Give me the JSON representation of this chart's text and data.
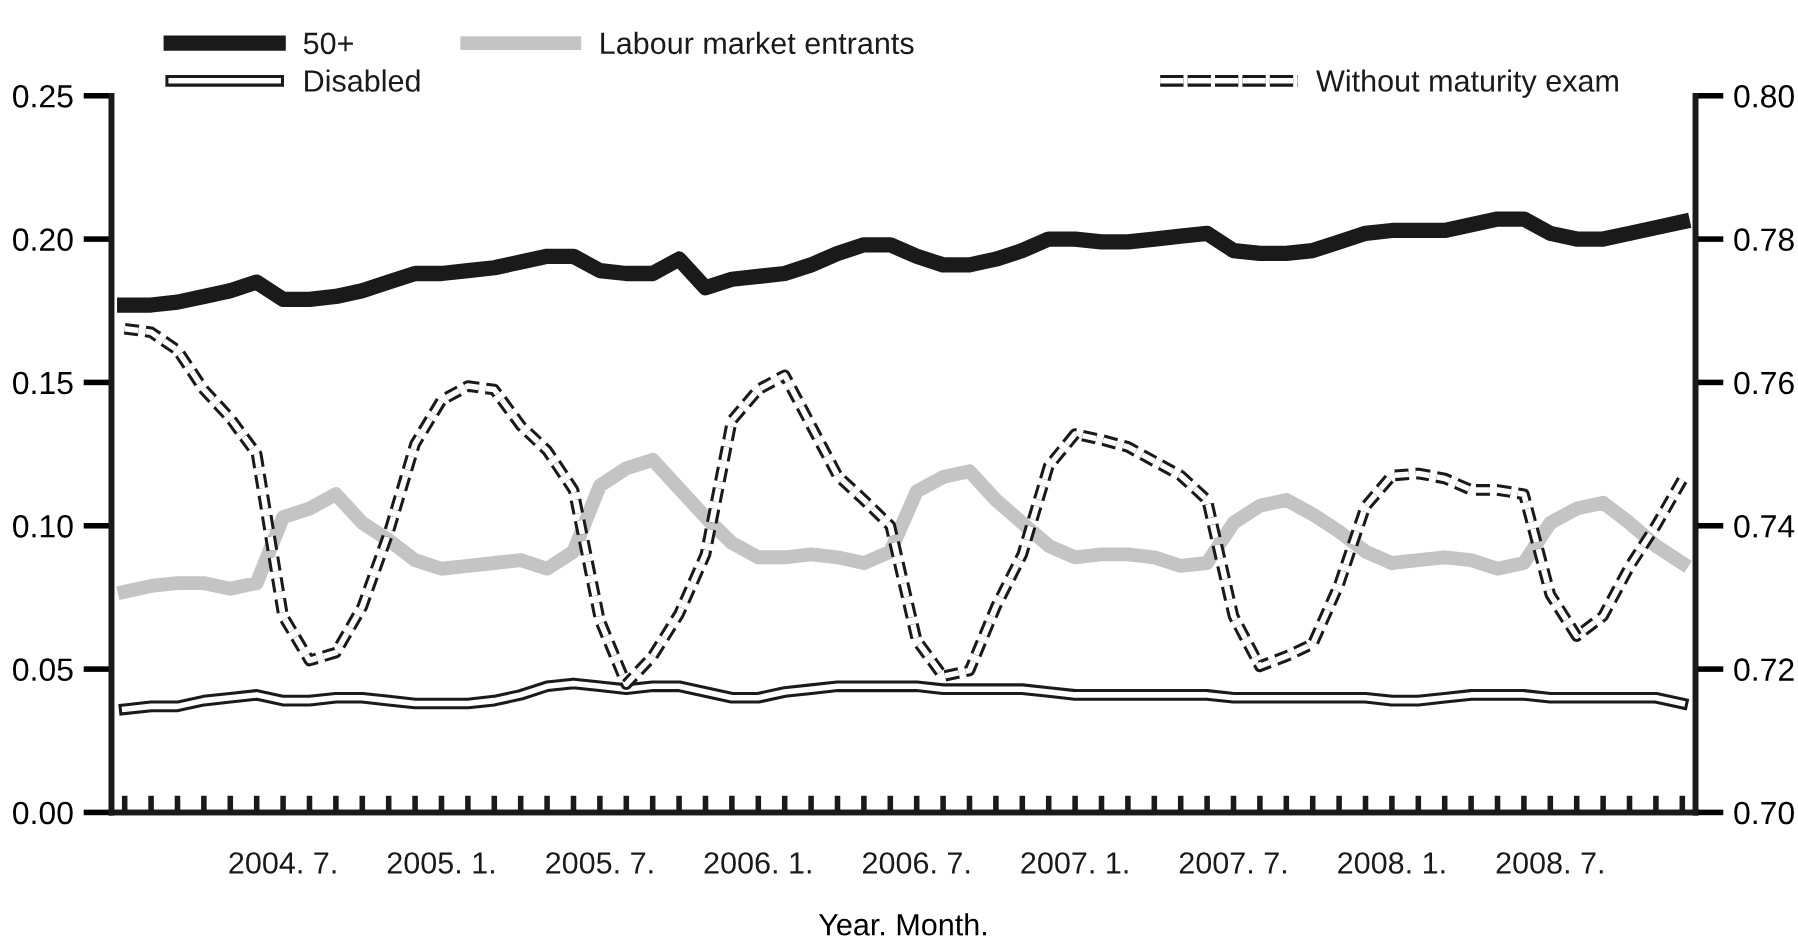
{
  "chart_data": {
    "type": "line",
    "xlabel": "Year. Month.",
    "categories": [
      null,
      null,
      null,
      null,
      null,
      null,
      "2004. 7.",
      null,
      null,
      null,
      null,
      null,
      "2005. 1.",
      null,
      null,
      null,
      null,
      null,
      "2005. 7.",
      null,
      null,
      null,
      null,
      null,
      "2006. 1.",
      null,
      null,
      null,
      null,
      null,
      "2006. 7.",
      null,
      null,
      null,
      null,
      null,
      "2007. 1.",
      null,
      null,
      null,
      null,
      null,
      "2007. 7.",
      null,
      null,
      null,
      null,
      null,
      "2008. 1.",
      null,
      null,
      null,
      null,
      null,
      "2008. 7.",
      null,
      null,
      null,
      null,
      null
    ],
    "series": [
      {
        "name": "50+",
        "color": "#1a1a1a",
        "values": [
          0.177,
          0.177,
          0.178,
          0.18,
          0.182,
          0.185,
          0.179,
          0.179,
          0.18,
          0.182,
          0.185,
          0.188,
          0.188,
          0.189,
          0.19,
          0.192,
          0.194,
          0.194,
          0.189,
          0.188,
          0.188,
          0.193,
          0.183,
          0.186,
          0.187,
          0.188,
          0.191,
          0.195,
          0.198,
          0.198,
          0.194,
          0.191,
          0.191,
          0.193,
          0.196,
          0.2,
          0.2,
          0.199,
          0.199,
          0.2,
          0.201,
          0.202,
          0.196,
          0.195,
          0.195,
          0.196,
          0.199,
          0.202,
          0.203,
          0.203,
          0.203,
          0.205,
          0.207,
          0.207,
          0.202,
          0.2,
          0.2,
          0.202,
          0.204,
          0.206
        ]
      },
      {
        "name": "Disabled",
        "color": "#1a1a1a",
        "values": [
          0.036,
          0.037,
          0.037,
          0.039,
          0.04,
          0.041,
          0.039,
          0.039,
          0.04,
          0.04,
          0.039,
          0.038,
          0.038,
          0.038,
          0.039,
          0.041,
          0.044,
          0.045,
          0.044,
          0.043,
          0.044,
          0.044,
          0.042,
          0.04,
          0.04,
          0.042,
          0.043,
          0.044,
          0.044,
          0.044,
          0.044,
          0.043,
          0.043,
          0.043,
          0.043,
          0.042,
          0.041,
          0.041,
          0.041,
          0.041,
          0.041,
          0.041,
          0.04,
          0.04,
          0.04,
          0.04,
          0.04,
          0.04,
          0.039,
          0.039,
          0.04,
          0.041,
          0.041,
          0.041,
          0.04,
          0.04,
          0.04,
          0.04,
          0.04,
          0.038
        ]
      },
      {
        "name": "Labour market entrants",
        "color": "#c4c4c4",
        "values": [
          0.077,
          0.079,
          0.08,
          0.08,
          0.078,
          0.08,
          0.103,
          0.106,
          0.111,
          0.101,
          0.095,
          0.088,
          0.085,
          0.086,
          0.087,
          0.088,
          0.085,
          0.091,
          0.114,
          0.12,
          0.123,
          0.113,
          0.103,
          0.094,
          0.089,
          0.089,
          0.09,
          0.089,
          0.087,
          0.091,
          0.112,
          0.117,
          0.119,
          0.109,
          0.101,
          0.093,
          0.089,
          0.09,
          0.09,
          0.089,
          0.086,
          0.087,
          0.101,
          0.107,
          0.109,
          0.104,
          0.098,
          0.091,
          0.087,
          0.088,
          0.089,
          0.088,
          0.085,
          0.087,
          0.101,
          0.106,
          0.108,
          0.101,
          0.093,
          0.087
        ]
      },
      {
        "name": "Without maturity exam",
        "color": "#1a1a1a",
        "axis": "y2",
        "line_style": "dashed",
        "values": [
          0.7675,
          0.767,
          0.7645,
          0.759,
          0.755,
          0.75,
          0.7274,
          0.7212,
          0.7223,
          0.7287,
          0.739,
          0.7514,
          0.7575,
          0.7595,
          0.759,
          0.754,
          0.7505,
          0.745,
          0.7268,
          0.7179,
          0.7218,
          0.7277,
          0.736,
          0.7547,
          0.759,
          0.761,
          0.754,
          0.747,
          0.7436,
          0.74,
          0.724,
          0.719,
          0.7198,
          0.7287,
          0.736,
          0.7483,
          0.7528,
          0.752,
          0.751,
          0.749,
          0.747,
          0.7436,
          0.7274,
          0.7204,
          0.7218,
          0.7235,
          0.7318,
          0.7427,
          0.747,
          0.7473,
          0.7466,
          0.745,
          0.745,
          0.7444,
          0.7304,
          0.7246,
          0.7274,
          0.7343,
          0.74,
          0.7464
        ]
      }
    ],
    "ylim": [
      0,
      0.25
    ],
    "yticks": [
      {
        "value": 0,
        "label": "0.00"
      },
      {
        "value": 0.05,
        "label": "0.05"
      },
      {
        "value": 0.1,
        "label": "0.10"
      },
      {
        "value": 0.15,
        "label": "0.15"
      },
      {
        "value": 0.2,
        "label": "0.20"
      },
      {
        "value": 0.25,
        "label": "0.25"
      }
    ],
    "y2lim": [
      0.7,
      0.8
    ],
    "y2ticks": [
      {
        "value": 0.7,
        "label": "0.70"
      },
      {
        "value": 0.72,
        "label": "0.72"
      },
      {
        "value": 0.74,
        "label": "0.74"
      },
      {
        "value": 0.76,
        "label": "0.76"
      },
      {
        "value": 0.78,
        "label": "0.78"
      },
      {
        "value": 0.8,
        "label": "0.80"
      }
    ],
    "legend": "top",
    "grid": false,
    "marker": "none",
    "line_style": "solid"
  }
}
